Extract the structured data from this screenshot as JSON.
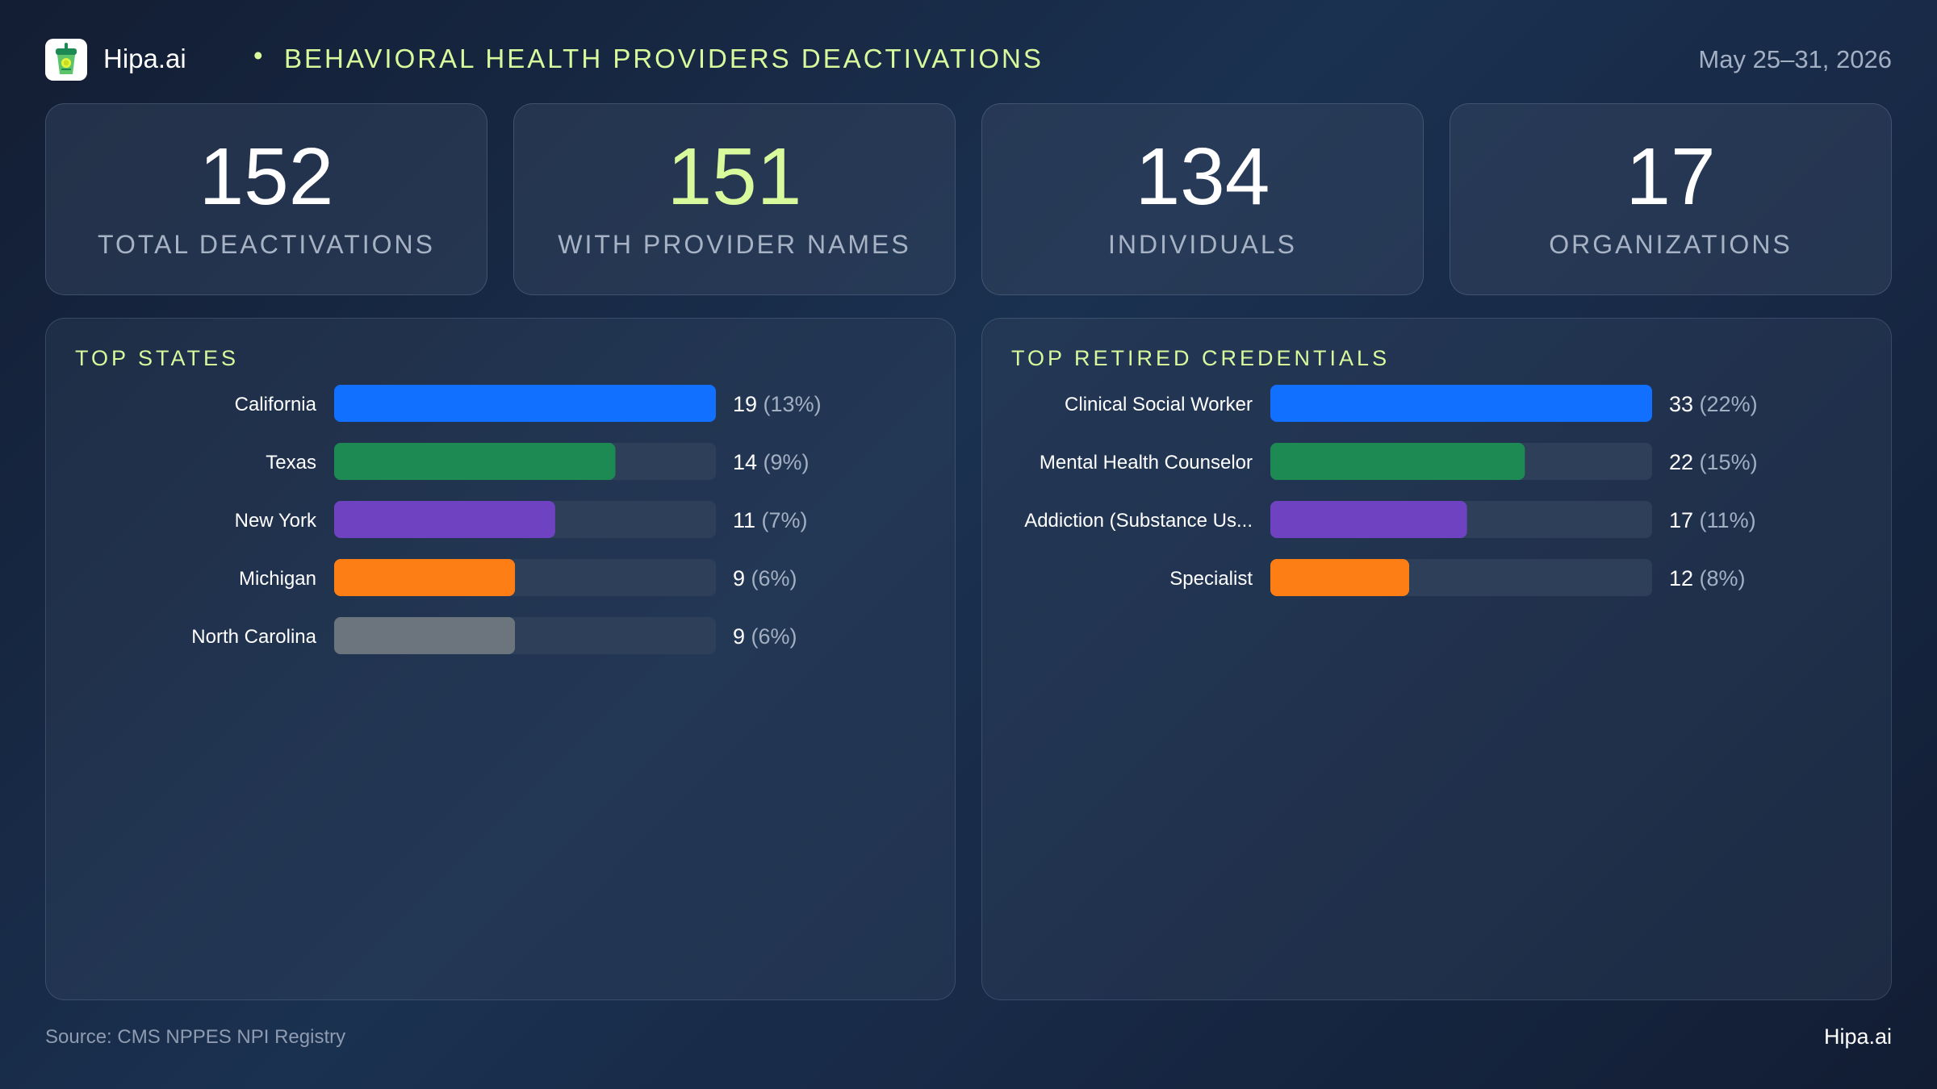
{
  "header": {
    "brand": "Hipa.ai",
    "separator": "•",
    "title": "BEHAVIORAL HEALTH PROVIDERS DEACTIVATIONS",
    "date": "May 25–31, 2026",
    "logo_icon": "lime-drink-cup-icon"
  },
  "kpis": [
    {
      "value": "152",
      "label": "TOTAL DEACTIVATIONS"
    },
    {
      "value": "151",
      "label": "WITH PROVIDER NAMES"
    },
    {
      "value": "134",
      "label": "INDIVIDUALS"
    },
    {
      "value": "17",
      "label": "ORGANIZATIONS"
    }
  ],
  "colors": {
    "accent": "#d9f99d",
    "blue": "#1170ff",
    "green": "#1d8a53",
    "purple": "#6f42c1",
    "orange": "#fd7e14",
    "gray": "#6c757d",
    "track": "#2e4059"
  },
  "chart_data": [
    {
      "type": "bar",
      "orientation": "horizontal",
      "title": "TOP STATES",
      "categories": [
        "California",
        "Texas",
        "New York",
        "Michigan",
        "North Carolina"
      ],
      "values": [
        19,
        14,
        11,
        9,
        9
      ],
      "percent_labels": [
        "(13%)",
        "(9%)",
        "(7%)",
        "(6%)",
        "(6%)"
      ],
      "colors": [
        "#1170ff",
        "#1d8a53",
        "#6f42c1",
        "#fd7e14",
        "#6c757d"
      ],
      "xlim": [
        0,
        19
      ],
      "grid": false
    },
    {
      "type": "bar",
      "orientation": "horizontal",
      "title": "TOP RETIRED CREDENTIALS",
      "categories": [
        "Clinical Social Worker",
        "Mental Health Counselor",
        "Addiction (Substance Us...",
        "Specialist"
      ],
      "values": [
        33,
        22,
        17,
        12
      ],
      "percent_labels": [
        "(22%)",
        "(15%)",
        "(11%)",
        "(8%)"
      ],
      "colors": [
        "#1170ff",
        "#1d8a53",
        "#6f42c1",
        "#fd7e14"
      ],
      "xlim": [
        0,
        33
      ],
      "grid": false
    }
  ],
  "footer": {
    "source": "Source: CMS NPPES NPI Registry",
    "brand": "Hipa.ai"
  }
}
